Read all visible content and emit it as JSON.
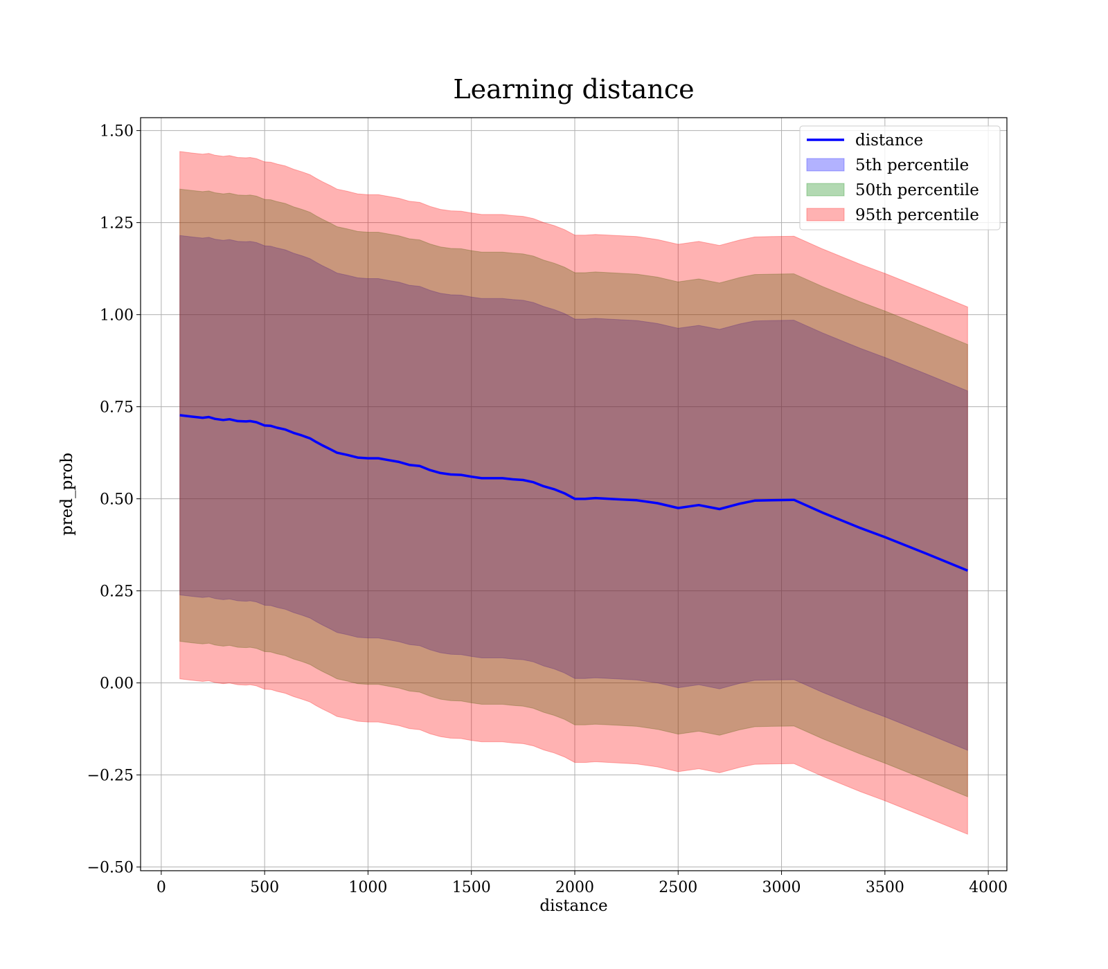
{
  "chart_data": {
    "type": "area",
    "title": "Learning distance",
    "xlabel": "distance",
    "ylabel": "pred_prob",
    "xlim": [
      -100,
      4090
    ],
    "ylim": [
      -0.51,
      1.535
    ],
    "grid": true,
    "legend_position": "top-right",
    "xticks": [
      0,
      500,
      1000,
      1500,
      2000,
      2500,
      3000,
      3500,
      4000
    ],
    "xtick_labels": [
      "0",
      "500",
      "1000",
      "1500",
      "2000",
      "2500",
      "3000",
      "3500",
      "4000"
    ],
    "yticks": [
      -0.5,
      -0.25,
      0.0,
      0.25,
      0.5,
      0.75,
      1.0,
      1.25,
      1.5
    ],
    "ytick_labels": [
      "−0.50",
      "−0.25",
      "0.00",
      "0.25",
      "0.50",
      "0.75",
      "1.00",
      "1.25",
      "1.50"
    ],
    "x": [
      90,
      150,
      200,
      230,
      260,
      300,
      330,
      370,
      410,
      430,
      460,
      500,
      530,
      560,
      600,
      640,
      680,
      700,
      720,
      750,
      780,
      820,
      850,
      900,
      950,
      1000,
      1050,
      1100,
      1150,
      1200,
      1250,
      1300,
      1350,
      1400,
      1450,
      1500,
      1550,
      1600,
      1650,
      1700,
      1750,
      1800,
      1850,
      1900,
      1950,
      2000,
      2050,
      2100,
      2200,
      2300,
      2400,
      2500,
      2600,
      2700,
      2800,
      2870,
      2950,
      3060,
      3200,
      3380,
      3500,
      3700,
      3900
    ],
    "series": [
      {
        "name": "distance",
        "kind": "line",
        "color": "#0000ff",
        "values": [
          0.727,
          0.723,
          0.72,
          0.722,
          0.717,
          0.714,
          0.716,
          0.711,
          0.71,
          0.711,
          0.708,
          0.699,
          0.698,
          0.693,
          0.688,
          0.679,
          0.672,
          0.668,
          0.664,
          0.654,
          0.645,
          0.634,
          0.625,
          0.619,
          0.612,
          0.61,
          0.61,
          0.605,
          0.6,
          0.592,
          0.589,
          0.578,
          0.57,
          0.566,
          0.565,
          0.56,
          0.556,
          0.556,
          0.556,
          0.553,
          0.551,
          0.545,
          0.534,
          0.526,
          0.515,
          0.5,
          0.5,
          0.502,
          0.499,
          0.496,
          0.488,
          0.475,
          0.483,
          0.472,
          0.487,
          0.495,
          0.496,
          0.497,
          0.462,
          0.421,
          0.396,
          0.351,
          0.305
        ]
      },
      {
        "name": "5th percentile",
        "kind": "band",
        "color": "#0000ff",
        "offset": 0.488
      },
      {
        "name": "50th percentile",
        "kind": "band",
        "color": "#008000",
        "offset": 0.614
      },
      {
        "name": "95th percentile",
        "kind": "band",
        "color": "#ff0000",
        "offset": 0.716
      }
    ],
    "legend": [
      "distance",
      "5th percentile",
      "50th percentile",
      "95th percentile"
    ]
  }
}
